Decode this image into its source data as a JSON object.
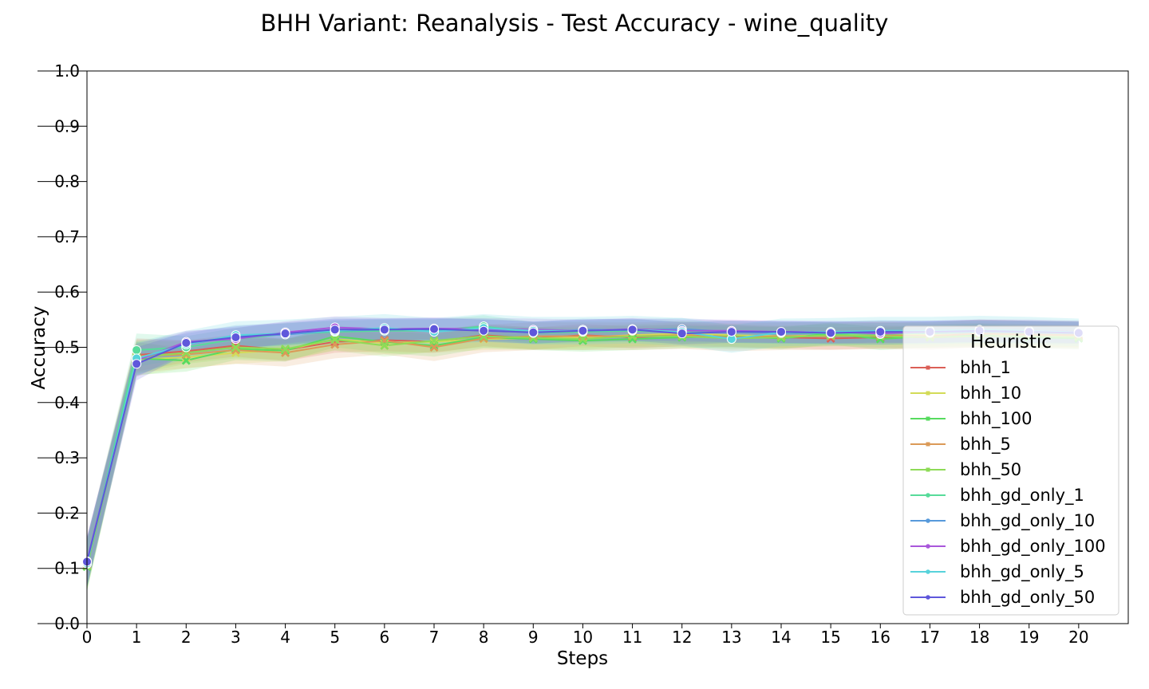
{
  "chart_data": {
    "type": "line",
    "title": "BHH Variant: Reanalysis - Test Accuracy - wine_quality",
    "xlabel": "Steps",
    "ylabel": "Accuracy",
    "xlim": [
      0,
      21
    ],
    "ylim": [
      0.0,
      1.0
    ],
    "x": [
      0,
      1,
      2,
      3,
      4,
      5,
      6,
      7,
      8,
      9,
      10,
      11,
      12,
      13,
      14,
      15,
      16,
      17,
      18,
      19,
      20
    ],
    "xticks": [
      "0",
      "1",
      "2",
      "3",
      "4",
      "5",
      "6",
      "7",
      "8",
      "9",
      "10",
      "11",
      "12",
      "13",
      "14",
      "15",
      "16",
      "17",
      "18",
      "19",
      "20"
    ],
    "yticks": [
      "0.0",
      "0.1",
      "0.2",
      "0.3",
      "0.4",
      "0.5",
      "0.6",
      "0.7",
      "0.8",
      "0.9",
      "1.0"
    ],
    "grid": false,
    "legend": {
      "title": "Heuristic",
      "placement": "lower-right"
    },
    "series": [
      {
        "name": "bhh_1",
        "color": "#db5f57",
        "marker": "x",
        "band": 0.02,
        "values": [
          0.11,
          0.486,
          0.493,
          0.503,
          0.495,
          0.51,
          0.513,
          0.51,
          0.522,
          0.516,
          0.522,
          0.518,
          0.522,
          0.52,
          0.518,
          0.516,
          0.518,
          0.518,
          0.52,
          0.52,
          0.52
        ]
      },
      {
        "name": "bhh_10",
        "color": "#d3db57",
        "marker": "x",
        "band": 0.02,
        "values": [
          0.105,
          0.478,
          0.482,
          0.49,
          0.495,
          0.515,
          0.508,
          0.51,
          0.515,
          0.516,
          0.518,
          0.522,
          0.525,
          0.522,
          0.52,
          0.522,
          0.525,
          0.522,
          0.524,
          0.522,
          0.52
        ]
      },
      {
        "name": "bhh_100",
        "color": "#57db5f",
        "marker": "x",
        "band": 0.02,
        "values": [
          0.103,
          0.48,
          0.476,
          0.497,
          0.494,
          0.52,
          0.51,
          0.503,
          0.518,
          0.515,
          0.512,
          0.515,
          0.518,
          0.52,
          0.516,
          0.525,
          0.515,
          0.52,
          0.522,
          0.518,
          0.516
        ]
      },
      {
        "name": "bhh_5",
        "color": "#db9a57",
        "marker": "x",
        "band": 0.025,
        "values": [
          0.108,
          0.484,
          0.487,
          0.495,
          0.49,
          0.505,
          0.512,
          0.5,
          0.516,
          0.52,
          0.52,
          0.52,
          0.522,
          0.518,
          0.52,
          0.52,
          0.522,
          0.52,
          0.525,
          0.523,
          0.522
        ]
      },
      {
        "name": "bhh_50",
        "color": "#8edb57",
        "marker": "x",
        "band": 0.02,
        "values": [
          0.104,
          0.482,
          0.49,
          0.5,
          0.497,
          0.514,
          0.503,
          0.512,
          0.52,
          0.517,
          0.515,
          0.52,
          0.52,
          0.516,
          0.518,
          0.522,
          0.52,
          0.518,
          0.52,
          0.52,
          0.518
        ]
      },
      {
        "name": "bhh_gd_only_1",
        "color": "#57db9a",
        "marker": "o",
        "band": 0.02,
        "values": [
          0.108,
          0.495,
          0.5,
          0.515,
          0.524,
          0.528,
          0.53,
          0.53,
          0.538,
          0.526,
          0.528,
          0.53,
          0.527,
          0.528,
          0.526,
          0.525,
          0.524,
          0.526,
          0.528,
          0.527,
          0.526
        ]
      },
      {
        "name": "bhh_gd_only_10",
        "color": "#579adb",
        "marker": "o",
        "band": 0.02,
        "values": [
          0.11,
          0.478,
          0.505,
          0.52,
          0.523,
          0.53,
          0.532,
          0.532,
          0.532,
          0.526,
          0.532,
          0.531,
          0.533,
          0.528,
          0.526,
          0.527,
          0.529,
          0.528,
          0.528,
          0.528,
          0.528
        ]
      },
      {
        "name": "bhh_gd_only_100",
        "color": "#a957db",
        "marker": "o",
        "band": 0.02,
        "values": [
          0.113,
          0.476,
          0.51,
          0.515,
          0.527,
          0.536,
          0.533,
          0.534,
          0.533,
          0.532,
          0.53,
          0.533,
          0.53,
          0.53,
          0.528,
          0.528,
          0.525,
          0.528,
          0.53,
          0.53,
          0.528
        ]
      },
      {
        "name": "bhh_gd_only_5",
        "color": "#57d3db",
        "marker": "o",
        "band": 0.025,
        "values": [
          0.109,
          0.48,
          0.505,
          0.522,
          0.525,
          0.53,
          0.535,
          0.528,
          0.535,
          0.53,
          0.53,
          0.532,
          0.528,
          0.515,
          0.527,
          0.528,
          0.53,
          0.53,
          0.532,
          0.53,
          0.527
        ]
      },
      {
        "name": "bhh_gd_only_50",
        "color": "#5f57db",
        "marker": "o",
        "band": 0.02,
        "values": [
          0.112,
          0.47,
          0.508,
          0.518,
          0.525,
          0.532,
          0.532,
          0.533,
          0.53,
          0.527,
          0.53,
          0.532,
          0.525,
          0.528,
          0.528,
          0.526,
          0.528,
          0.528,
          0.53,
          0.528,
          0.526
        ]
      }
    ]
  }
}
